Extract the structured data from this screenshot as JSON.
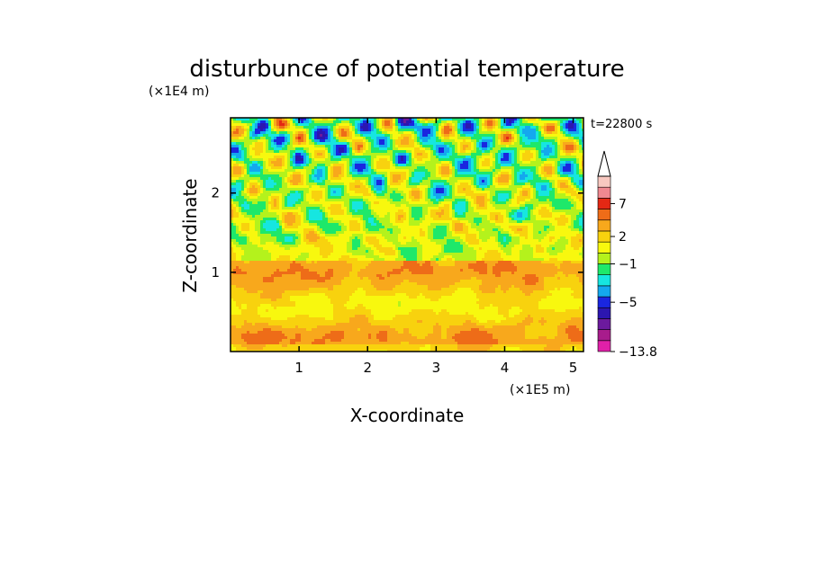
{
  "chart_data": {
    "type": "heatmap",
    "title": "disturbunce of potential temperature",
    "xlabel": "X-coordinate",
    "ylabel": "Z-coordinate",
    "x_unit_label": "(×1E5 m)",
    "y_unit_label": "(×1E4 m)",
    "time_label": "t=22800  s",
    "xlim": [
      0,
      5.15
    ],
    "ylim": [
      0,
      2.95
    ],
    "x_ticks": [
      "1",
      "2",
      "3",
      "4",
      "5"
    ],
    "y_ticks": [
      "1",
      "2"
    ],
    "x_tick_values": [
      1,
      2,
      3,
      4,
      5
    ],
    "y_tick_values": [
      1,
      2
    ],
    "colorbar": {
      "levels": [
        {
          "color": "#e020a8"
        },
        {
          "color": "#a81c8c"
        },
        {
          "color": "#6c1a9e"
        },
        {
          "color": "#2c16b0"
        },
        {
          "color": "#1a26e0"
        },
        {
          "color": "#14a8ee"
        },
        {
          "color": "#16e6e0"
        },
        {
          "color": "#1ee86a"
        },
        {
          "color": "#b4f21c"
        },
        {
          "color": "#f8f80e"
        },
        {
          "color": "#f8d20e"
        },
        {
          "color": "#f8a81c"
        },
        {
          "color": "#ee6c18"
        },
        {
          "color": "#e42814"
        },
        {
          "color": "#f08890"
        },
        {
          "color": "#f8c8c0"
        }
      ],
      "labels": [
        {
          "text": "7",
          "level_index": 13.5
        },
        {
          "text": "2",
          "level_index": 10.5
        },
        {
          "text": "−1",
          "level_index": 8
        },
        {
          "text": "−5",
          "level_index": 4.5
        },
        {
          "text": "−13.8",
          "level_index": 0
        }
      ],
      "extend": "max"
    }
  }
}
